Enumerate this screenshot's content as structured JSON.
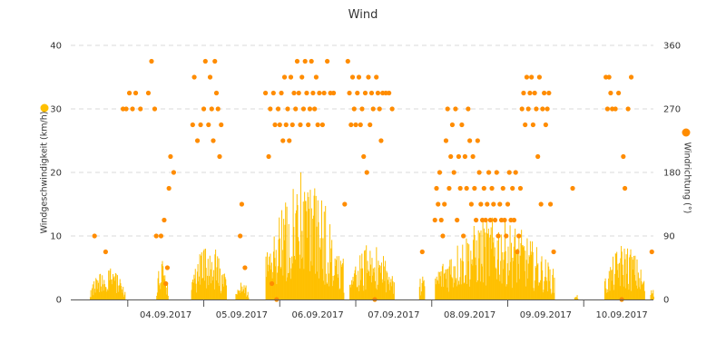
{
  "chart_data": {
    "type": "bar",
    "title": "Wind",
    "x_tick_labels": [
      "04.09.2017",
      "05.09.2017",
      "06.09.2017",
      "07.09.2017",
      "08.09.2017",
      "09.09.2017",
      "10.09.2017"
    ],
    "x_range": [
      "03.09.2017 06:00",
      "10.09.2017 22:00"
    ],
    "y_left": {
      "label": "Windgeschwindigkeit (km/h)",
      "range": [
        0,
        40
      ],
      "ticks": [
        0,
        10,
        20,
        30,
        40
      ]
    },
    "y_right": {
      "label": "Windrichtung (°)",
      "range": [
        0,
        360
      ],
      "ticks": [
        0,
        90,
        180,
        270,
        360
      ]
    },
    "grid": "horizontal dashed",
    "legend": "marker dots beside each axis title",
    "colors": {
      "speed": "#ffc000",
      "direction": "#ff8c00",
      "text": "#333333",
      "grid": "#d9d9d9",
      "axis": "#555555"
    },
    "series": [
      {
        "type": "bar",
        "axis": "left",
        "segments": [
          {
            "start": "03.09.2017 12:00",
            "end": "03.09.2017 23:00",
            "peak": 5
          },
          {
            "start": "04.09.2017 09:00",
            "end": "04.09.2017 12:30",
            "peak": 6.5
          },
          {
            "start": "04.09.2017 20:00",
            "end": "05.09.2017 07:00",
            "peak": 9
          },
          {
            "start": "05.09.2017 10:00",
            "end": "05.09.2017 14:00",
            "peak": 3
          },
          {
            "start": "05.09.2017 19:30",
            "end": "06.09.2017 20:00",
            "peak": 19,
            "max": 20
          },
          {
            "start": "06.09.2017 22:00",
            "end": "07.09.2017 12:00",
            "peak": 9
          },
          {
            "start": "07.09.2017 20:00",
            "end": "07.09.2017 21:30",
            "peak": 5
          },
          {
            "start": "08.09.2017 01:00",
            "end": "09.09.2017 14:30",
            "peak": 13
          },
          {
            "start": "09.09.2017 21:00",
            "end": "09.09.2017 22:00",
            "peak": 1
          },
          {
            "start": "10.09.2017 06:30",
            "end": "10.09.2017 19:00",
            "peak": 9
          },
          {
            "start": "10.09.2017 21:00",
            "end": "10.09.2017 22:00",
            "peak": 2
          }
        ]
      },
      {
        "type": "scatter",
        "axis": "right",
        "points": [
          [
            "03.09.2017 13:30",
            90
          ],
          [
            "03.09.2017 17:00",
            67.5
          ],
          [
            "03.09.2017 22:30",
            270
          ],
          [
            "03.09.2017 23:30",
            270
          ],
          [
            "04.09.2017 00:30",
            292.5
          ],
          [
            "04.09.2017 01:30",
            270
          ],
          [
            "04.09.2017 02:30",
            292.5
          ],
          [
            "04.09.2017 04:00",
            270
          ],
          [
            "04.09.2017 06:30",
            292.5
          ],
          [
            "04.09.2017 07:30",
            337.5
          ],
          [
            "04.09.2017 08:30",
            270
          ],
          [
            "04.09.2017 09:00",
            90
          ],
          [
            "04.09.2017 10:30",
            90
          ],
          [
            "04.09.2017 11:30",
            112.5
          ],
          [
            "04.09.2017 12:00",
            22.5
          ],
          [
            "04.09.2017 12:30",
            45
          ],
          [
            "04.09.2017 13:00",
            157.5
          ],
          [
            "04.09.2017 13:30",
            202.5
          ],
          [
            "04.09.2017 14:30",
            180
          ],
          [
            "04.09.2017 20:30",
            247.5
          ],
          [
            "04.09.2017 21:00",
            315
          ],
          [
            "04.09.2017 22:00",
            225
          ],
          [
            "04.09.2017 23:00",
            247.5
          ],
          [
            "05.09.2017 00:00",
            270
          ],
          [
            "05.09.2017 00:30",
            337.5
          ],
          [
            "05.09.2017 01:30",
            247.5
          ],
          [
            "05.09.2017 02:00",
            315
          ],
          [
            "05.09.2017 02:30",
            270
          ],
          [
            "05.09.2017 03:00",
            225
          ],
          [
            "05.09.2017 03:30",
            337.5
          ],
          [
            "05.09.2017 04:00",
            292.5
          ],
          [
            "05.09.2017 04:30",
            270
          ],
          [
            "05.09.2017 05:00",
            202.5
          ],
          [
            "05.09.2017 05:30",
            247.5
          ],
          [
            "05.09.2017 11:30",
            90
          ],
          [
            "05.09.2017 12:00",
            135
          ],
          [
            "05.09.2017 13:00",
            45
          ],
          [
            "05.09.2017 19:30",
            292.5
          ],
          [
            "05.09.2017 20:30",
            202.5
          ],
          [
            "05.09.2017 21:00",
            270
          ],
          [
            "05.09.2017 21:30",
            22.5
          ],
          [
            "05.09.2017 22:00",
            292.5
          ],
          [
            "05.09.2017 22:30",
            247.5
          ],
          [
            "05.09.2017 23:00",
            0
          ],
          [
            "05.09.2017 23:30",
            270
          ],
          [
            "06.09.2017 00:00",
            247.5
          ],
          [
            "06.09.2017 00:30",
            292.5
          ],
          [
            "06.09.2017 01:00",
            225
          ],
          [
            "06.09.2017 01:30",
            315
          ],
          [
            "06.09.2017 02:00",
            247.5
          ],
          [
            "06.09.2017 02:30",
            270
          ],
          [
            "06.09.2017 03:00",
            225
          ],
          [
            "06.09.2017 03:30",
            315
          ],
          [
            "06.09.2017 04:00",
            247.5
          ],
          [
            "06.09.2017 04:30",
            292.5
          ],
          [
            "06.09.2017 05:00",
            270
          ],
          [
            "06.09.2017 05:30",
            337.5
          ],
          [
            "06.09.2017 06:00",
            292.5
          ],
          [
            "06.09.2017 06:30",
            247.5
          ],
          [
            "06.09.2017 07:00",
            315
          ],
          [
            "06.09.2017 07:30",
            270
          ],
          [
            "06.09.2017 08:00",
            337.5
          ],
          [
            "06.09.2017 08:30",
            292.5
          ],
          [
            "06.09.2017 09:00",
            247.5
          ],
          [
            "06.09.2017 09:30",
            270
          ],
          [
            "06.09.2017 10:00",
            337.5
          ],
          [
            "06.09.2017 10:30",
            292.5
          ],
          [
            "06.09.2017 11:00",
            270
          ],
          [
            "06.09.2017 11:30",
            315
          ],
          [
            "06.09.2017 12:00",
            247.5
          ],
          [
            "06.09.2017 12:30",
            292.5
          ],
          [
            "06.09.2017 13:30",
            247.5
          ],
          [
            "06.09.2017 14:00",
            292.5
          ],
          [
            "06.09.2017 15:00",
            337.5
          ],
          [
            "06.09.2017 16:00",
            292.5
          ],
          [
            "06.09.2017 17:00",
            292.5
          ],
          [
            "06.09.2017 20:30",
            135
          ],
          [
            "06.09.2017 21:30",
            337.5
          ],
          [
            "06.09.2017 22:00",
            292.5
          ],
          [
            "06.09.2017 22:30",
            247.5
          ],
          [
            "06.09.2017 23:00",
            315
          ],
          [
            "06.09.2017 23:30",
            270
          ],
          [
            "07.09.2017 00:00",
            247.5
          ],
          [
            "07.09.2017 00:30",
            292.5
          ],
          [
            "07.09.2017 01:00",
            315
          ],
          [
            "07.09.2017 01:30",
            247.5
          ],
          [
            "07.09.2017 02:00",
            270
          ],
          [
            "07.09.2017 02:30",
            202.5
          ],
          [
            "07.09.2017 03:00",
            292.5
          ],
          [
            "07.09.2017 03:30",
            180
          ],
          [
            "07.09.2017 04:00",
            315
          ],
          [
            "07.09.2017 04:30",
            247.5
          ],
          [
            "07.09.2017 05:00",
            292.5
          ],
          [
            "07.09.2017 05:30",
            270
          ],
          [
            "07.09.2017 06:00",
            0
          ],
          [
            "07.09.2017 06:30",
            315
          ],
          [
            "07.09.2017 07:00",
            292.5
          ],
          [
            "07.09.2017 07:30",
            270
          ],
          [
            "07.09.2017 08:00",
            225
          ],
          [
            "07.09.2017 08:30",
            292.5
          ],
          [
            "07.09.2017 09:30",
            292.5
          ],
          [
            "07.09.2017 10:30",
            292.5
          ],
          [
            "07.09.2017 11:30",
            270
          ],
          [
            "07.09.2017 21:00",
            67.5
          ],
          [
            "08.09.2017 01:00",
            112.5
          ],
          [
            "08.09.2017 01:30",
            157.5
          ],
          [
            "08.09.2017 02:00",
            135
          ],
          [
            "08.09.2017 02:30",
            180
          ],
          [
            "08.09.2017 03:00",
            112.5
          ],
          [
            "08.09.2017 03:30",
            90
          ],
          [
            "08.09.2017 04:00",
            135
          ],
          [
            "08.09.2017 04:30",
            225
          ],
          [
            "08.09.2017 05:00",
            270
          ],
          [
            "08.09.2017 05:30",
            157.5
          ],
          [
            "08.09.2017 06:00",
            202.5
          ],
          [
            "08.09.2017 06:30",
            247.5
          ],
          [
            "08.09.2017 07:00",
            180
          ],
          [
            "08.09.2017 07:30",
            270
          ],
          [
            "08.09.2017 08:00",
            112.5
          ],
          [
            "08.09.2017 08:30",
            202.5
          ],
          [
            "08.09.2017 09:00",
            157.5
          ],
          [
            "08.09.2017 09:30",
            247.5
          ],
          [
            "08.09.2017 10:00",
            90
          ],
          [
            "08.09.2017 10:30",
            202.5
          ],
          [
            "08.09.2017 11:00",
            157.5
          ],
          [
            "08.09.2017 11:30",
            270
          ],
          [
            "08.09.2017 12:00",
            225
          ],
          [
            "08.09.2017 12:30",
            135
          ],
          [
            "08.09.2017 13:00",
            202.5
          ],
          [
            "08.09.2017 13:30",
            157.5
          ],
          [
            "08.09.2017 14:00",
            112.5
          ],
          [
            "08.09.2017 14:30",
            225
          ],
          [
            "08.09.2017 15:00",
            180
          ],
          [
            "08.09.2017 15:30",
            135
          ],
          [
            "08.09.2017 16:00",
            112.5
          ],
          [
            "08.09.2017 16:30",
            157.5
          ],
          [
            "08.09.2017 17:00",
            112.5
          ],
          [
            "08.09.2017 17:30",
            135
          ],
          [
            "08.09.2017 18:00",
            180
          ],
          [
            "08.09.2017 18:30",
            112.5
          ],
          [
            "08.09.2017 19:00",
            157.5
          ],
          [
            "08.09.2017 19:30",
            135
          ],
          [
            "08.09.2017 20:00",
            112.5
          ],
          [
            "08.09.2017 20:30",
            180
          ],
          [
            "08.09.2017 21:00",
            90
          ],
          [
            "08.09.2017 21:30",
            135
          ],
          [
            "08.09.2017 22:00",
            112.5
          ],
          [
            "08.09.2017 22:30",
            157.5
          ],
          [
            "08.09.2017 23:00",
            112.5
          ],
          [
            "08.09.2017 23:30",
            90
          ],
          [
            "09.09.2017 00:00",
            135
          ],
          [
            "09.09.2017 00:30",
            180
          ],
          [
            "09.09.2017 01:00",
            112.5
          ],
          [
            "09.09.2017 01:30",
            157.5
          ],
          [
            "09.09.2017 02:00",
            112.5
          ],
          [
            "09.09.2017 02:30",
            180
          ],
          [
            "09.09.2017 03:00",
            67.5
          ],
          [
            "09.09.2017 03:30",
            90
          ],
          [
            "09.09.2017 04:00",
            157.5
          ],
          [
            "09.09.2017 04:30",
            270
          ],
          [
            "09.09.2017 05:00",
            292.5
          ],
          [
            "09.09.2017 05:30",
            247.5
          ],
          [
            "09.09.2017 06:00",
            315
          ],
          [
            "09.09.2017 06:30",
            270
          ],
          [
            "09.09.2017 07:00",
            292.5
          ],
          [
            "09.09.2017 07:30",
            315
          ],
          [
            "09.09.2017 08:00",
            247.5
          ],
          [
            "09.09.2017 08:30",
            292.5
          ],
          [
            "09.09.2017 09:00",
            270
          ],
          [
            "09.09.2017 09:30",
            202.5
          ],
          [
            "09.09.2017 10:00",
            315
          ],
          [
            "09.09.2017 10:30",
            135
          ],
          [
            "09.09.2017 11:00",
            270
          ],
          [
            "09.09.2017 11:30",
            292.5
          ],
          [
            "09.09.2017 12:00",
            247.5
          ],
          [
            "09.09.2017 12:30",
            270
          ],
          [
            "09.09.2017 13:00",
            292.5
          ],
          [
            "09.09.2017 13:30",
            135
          ],
          [
            "09.09.2017 14:30",
            67.5
          ],
          [
            "09.09.2017 20:30",
            157.5
          ],
          [
            "10.09.2017 07:00",
            315
          ],
          [
            "10.09.2017 07:30",
            270
          ],
          [
            "10.09.2017 08:00",
            315
          ],
          [
            "10.09.2017 08:30",
            292.5
          ],
          [
            "10.09.2017 09:00",
            270
          ],
          [
            "10.09.2017 10:00",
            270
          ],
          [
            "10.09.2017 11:00",
            292.5
          ],
          [
            "10.09.2017 12:00",
            0
          ],
          [
            "10.09.2017 12:30",
            202.5
          ],
          [
            "10.09.2017 13:00",
            157.5
          ],
          [
            "10.09.2017 14:00",
            270
          ],
          [
            "10.09.2017 15:00",
            315
          ],
          [
            "10.09.2017 21:30",
            67.5
          ]
        ]
      }
    ]
  }
}
